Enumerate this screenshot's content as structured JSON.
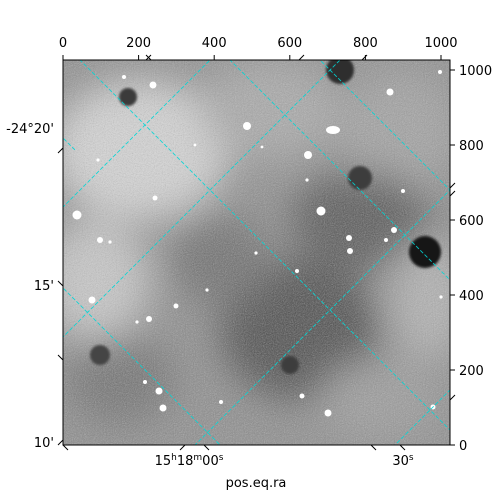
{
  "figure": {
    "xlabel": "pos.eq.ra",
    "pixel_axis_top": {
      "ticks": [
        "0",
        "200",
        "400",
        "600",
        "800",
        "1000"
      ]
    },
    "pixel_axis_right": {
      "ticks": [
        "0",
        "200",
        "400",
        "600",
        "800",
        "1000"
      ]
    },
    "ra_axis_bottom": {
      "ticks": [
        {
          "main": "15",
          "sup1": "h",
          "mid": "18",
          "sup2": "m",
          "end": "00",
          "sup3": "s"
        },
        {
          "main": "30",
          "sup3": "s"
        }
      ]
    },
    "dec_axis_left": {
      "ticks": [
        "-24°20'",
        "15'",
        "10'"
      ]
    },
    "grid_color": "#00d7d7",
    "colormap": "grayscale"
  }
}
